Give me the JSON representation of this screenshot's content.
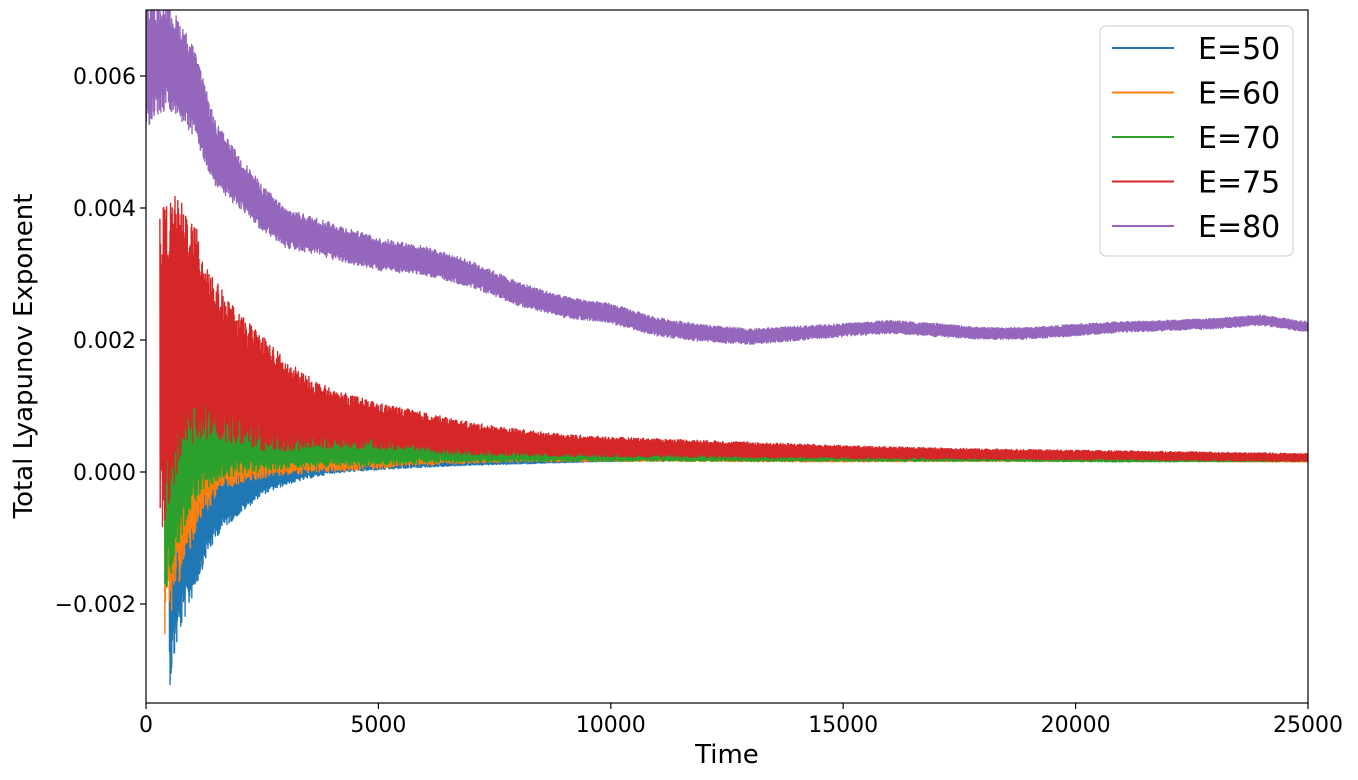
{
  "chart_data": {
    "type": "line",
    "xlabel": "Time",
    "ylabel": "Total Lyapunov Exponent",
    "xlim": [
      0,
      25000
    ],
    "ylim": [
      -0.0035,
      0.007
    ],
    "xticks": [
      0,
      5000,
      10000,
      15000,
      20000,
      25000
    ],
    "xtick_labels": [
      "0",
      "5000",
      "10000",
      "15000",
      "20000",
      "25000"
    ],
    "yticks": [
      -0.002,
      0.0,
      0.002,
      0.004,
      0.006
    ],
    "ytick_labels": [
      "−0.002",
      "0.000",
      "0.002",
      "0.004",
      "0.006"
    ],
    "grid": false,
    "legend_position": "top-right",
    "series": [
      {
        "name": "E=50",
        "color": "#1f77b4",
        "zorder": 1,
        "x": [
          500,
          700,
          1000,
          1300,
          1600,
          2000,
          2500,
          3000,
          3500,
          4000,
          5000,
          6000,
          7000,
          8000,
          9000,
          10000,
          12000,
          15000,
          18000,
          21000,
          25000
        ],
        "mid": [
          -0.0015,
          -0.0012,
          -0.0009,
          -0.0006,
          -0.0004,
          -0.0003,
          -0.0001,
          0.0,
          5e-05,
          0.0001,
          0.00013,
          0.00015,
          0.00016,
          0.00017,
          0.00018,
          0.00019,
          0.0002,
          0.0002,
          0.0002,
          0.0002,
          0.0002
        ],
        "amp": [
          0.0018,
          0.0013,
          0.001,
          0.0007,
          0.0005,
          0.00035,
          0.00025,
          0.0002,
          0.00015,
          0.00012,
          0.0001,
          8e-05,
          6e-05,
          5e-05,
          4e-05,
          3e-05,
          2e-05,
          2e-05,
          1.5e-05,
          1.5e-05,
          1.5e-05
        ]
      },
      {
        "name": "E=60",
        "color": "#ff7f0e",
        "zorder": 2,
        "x": [
          400,
          700,
          1000,
          1300,
          1600,
          2000,
          2500,
          3000,
          4000,
          5000,
          6000,
          7000,
          8000,
          10000,
          12000,
          15000,
          18000,
          21000,
          25000
        ],
        "mid": [
          -0.0003,
          -0.0002,
          0.0,
          0.0002,
          0.0003,
          0.0003,
          0.0003,
          0.0003,
          0.0003,
          0.0003,
          0.0003,
          0.00028,
          0.00027,
          0.00024,
          0.00022,
          0.0002,
          0.0002,
          0.0002,
          0.00018
        ],
        "amp": [
          0.0022,
          0.0015,
          0.0011,
          0.0008,
          0.0006,
          0.0005,
          0.0004,
          0.00035,
          0.0003,
          0.00025,
          0.0002,
          0.00015,
          0.00012,
          8e-05,
          6e-05,
          5e-05,
          4e-05,
          4e-05,
          3e-05
        ]
      },
      {
        "name": "E=70",
        "color": "#2ca02c",
        "zorder": 3,
        "x": [
          400,
          700,
          1000,
          1300,
          1600,
          2000,
          2500,
          3000,
          4000,
          5000,
          6000,
          7000,
          8000,
          10000,
          12000,
          15000,
          18000,
          21000,
          25000
        ],
        "mid": [
          0.0,
          0.0003,
          0.0005,
          0.0005,
          0.0005,
          0.00045,
          0.0004,
          0.0004,
          0.00038,
          0.00035,
          0.00033,
          0.0003,
          0.00028,
          0.00026,
          0.00024,
          0.00023,
          0.00022,
          0.0002,
          0.0002
        ],
        "amp": [
          0.002,
          0.0014,
          0.001,
          0.0008,
          0.0006,
          0.0005,
          0.0004,
          0.00035,
          0.0003,
          0.00025,
          0.0002,
          0.00015,
          0.00012,
          0.0001,
          8e-05,
          7e-05,
          6e-05,
          5e-05,
          4e-05
        ]
      },
      {
        "name": "E=75",
        "color": "#d62728",
        "zorder": 4,
        "x": [
          300,
          600,
          900,
          1200,
          1500,
          2000,
          2500,
          3000,
          3500,
          4000,
          5000,
          6000,
          7000,
          8000,
          9000,
          10000,
          12000,
          15000,
          18000,
          21000,
          25000
        ],
        "mid": [
          0.0015,
          0.002,
          0.0022,
          0.002,
          0.0017,
          0.0014,
          0.0012,
          0.001,
          0.0009,
          0.0008,
          0.0007,
          0.0006,
          0.0005,
          0.00045,
          0.0004,
          0.00038,
          0.00035,
          0.0003,
          0.00027,
          0.00025,
          0.00022
        ],
        "amp": [
          0.0025,
          0.0022,
          0.0018,
          0.0015,
          0.0012,
          0.001,
          0.0009,
          0.0007,
          0.00055,
          0.00045,
          0.00035,
          0.0003,
          0.00025,
          0.0002,
          0.00017,
          0.00015,
          0.00013,
          0.0001,
          8e-05,
          7e-05,
          6e-05
        ]
      },
      {
        "name": "E=80",
        "color": "#9467bd",
        "zorder": 5,
        "x": [
          0,
          500,
          1000,
          1500,
          2000,
          2500,
          3000,
          4000,
          5000,
          6000,
          7000,
          8000,
          9000,
          10000,
          11000,
          12000,
          13000,
          14000,
          15000,
          16000,
          17000,
          18000,
          19000,
          20000,
          21000,
          22000,
          23000,
          24000,
          25000
        ],
        "mid": [
          0.0062,
          0.0063,
          0.0058,
          0.0048,
          0.0044,
          0.004,
          0.0037,
          0.0035,
          0.0033,
          0.0032,
          0.003,
          0.0027,
          0.0025,
          0.0024,
          0.0022,
          0.0021,
          0.00205,
          0.0021,
          0.00215,
          0.0022,
          0.00215,
          0.0021,
          0.0021,
          0.00215,
          0.0022,
          0.00222,
          0.00225,
          0.0023,
          0.0022
        ],
        "amp": [
          0.001,
          0.0008,
          0.0007,
          0.0005,
          0.0004,
          0.00035,
          0.0003,
          0.00028,
          0.00025,
          0.00022,
          0.0002,
          0.00018,
          0.00016,
          0.00015,
          0.00014,
          0.00013,
          0.00012,
          0.00011,
          0.0001,
          0.0001,
          0.0001,
          9e-05,
          9e-05,
          9e-05,
          8e-05,
          8e-05,
          8e-05,
          8e-05,
          8e-05
        ]
      }
    ]
  }
}
